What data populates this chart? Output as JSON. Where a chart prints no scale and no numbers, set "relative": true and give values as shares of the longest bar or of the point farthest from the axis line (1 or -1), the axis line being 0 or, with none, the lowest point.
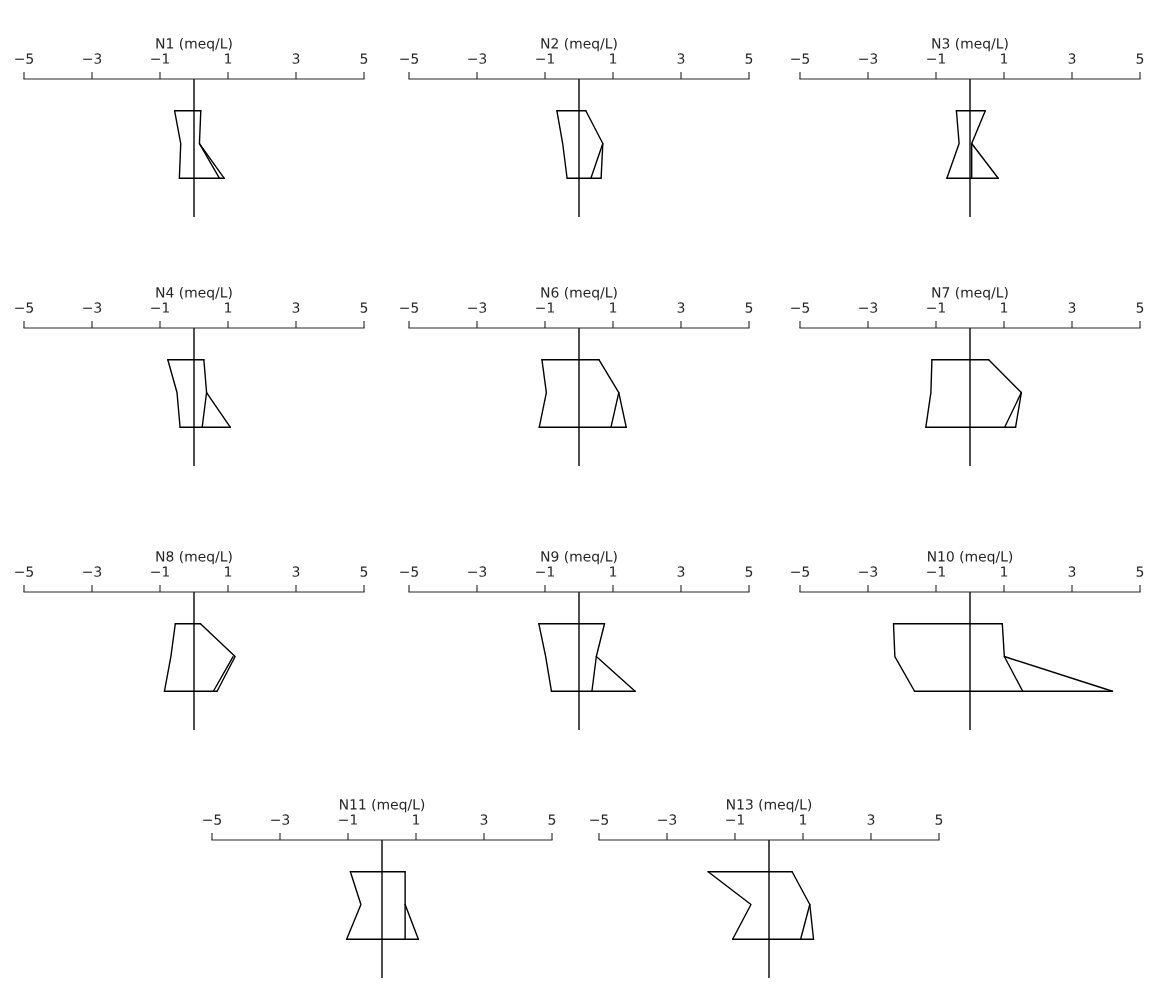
{
  "chart_data": [
    {
      "type": "line",
      "title": "N1 (meq/L)",
      "relative": true,
      "xlim": [
        -5,
        5
      ],
      "xticks": [
        {
          "value": -5,
          "label": "−5"
        },
        {
          "value": -3,
          "label": "−3"
        },
        {
          "value": -1,
          "label": "−1"
        },
        1,
        3,
        5
      ],
      "tick_labels": "x",
      "ref_lines": [
        {
          "axis": "x",
          "value": 0,
          "color": "#000000"
        }
      ],
      "series": [
        {
          "color": "#000000",
          "x": [
            -0.57,
            0.2
          ],
          "values": [
            -0.32,
            -0.32
          ]
        },
        {
          "color": "#000000",
          "x": [
            -0.57,
            -0.39,
            -0.43
          ],
          "values": [
            -0.32,
            -0.65,
            -1
          ]
        },
        {
          "color": "#000000",
          "x": [
            0.2,
            0.16,
            0.89
          ],
          "values": [
            -0.32,
            -0.65,
            -1
          ]
        },
        {
          "color": "#000000",
          "x": [
            0.16,
            0.75
          ],
          "values": [
            -0.65,
            -1
          ]
        },
        {
          "color": "#000000",
          "x": [
            -0.43,
            0.89
          ],
          "values": [
            -1,
            -1
          ]
        }
      ]
    },
    {
      "type": "line",
      "title": "N2 (meq/L)",
      "relative": true,
      "xlim": [
        -5,
        5
      ],
      "xticks": [
        {
          "value": -5,
          "label": "−5"
        },
        {
          "value": -3,
          "label": "−3"
        },
        {
          "value": -1,
          "label": "−1"
        },
        1,
        3,
        5
      ],
      "tick_labels": "x",
      "ref_lines": [
        {
          "axis": "x",
          "value": 0,
          "color": "#000000"
        }
      ],
      "series": [
        {
          "color": "#000000",
          "x": [
            -0.65,
            0.2
          ],
          "values": [
            -0.32,
            -0.32
          ]
        },
        {
          "color": "#000000",
          "x": [
            -0.65,
            -0.48,
            -0.35
          ],
          "values": [
            -0.32,
            -0.65,
            -1
          ]
        },
        {
          "color": "#000000",
          "x": [
            0.2,
            0.7,
            0.65
          ],
          "values": [
            -0.32,
            -0.65,
            -1
          ]
        },
        {
          "color": "#000000",
          "x": [
            0.7,
            0.35
          ],
          "values": [
            -0.65,
            -1
          ]
        },
        {
          "color": "#000000",
          "x": [
            -0.35,
            0.65
          ],
          "values": [
            -1,
            -1
          ]
        }
      ]
    },
    {
      "type": "line",
      "title": "N3 (meq/L)",
      "relative": true,
      "xlim": [
        -5,
        5
      ],
      "xticks": [
        {
          "value": -5,
          "label": "−5"
        },
        {
          "value": -3,
          "label": "−3"
        },
        {
          "value": -1,
          "label": "−1"
        },
        1,
        3,
        5
      ],
      "tick_labels": "x",
      "ref_lines": [
        {
          "axis": "x",
          "value": 0,
          "color": "#000000"
        }
      ],
      "series": [
        {
          "color": "#000000",
          "x": [
            -0.4,
            0.45
          ],
          "values": [
            -0.32,
            -0.32
          ]
        },
        {
          "color": "#000000",
          "x": [
            -0.4,
            -0.32,
            -0.68
          ],
          "values": [
            -0.32,
            -0.65,
            -1
          ]
        },
        {
          "color": "#000000",
          "x": [
            0.45,
            0.05,
            0.83
          ],
          "values": [
            -0.32,
            -0.65,
            -1
          ]
        },
        {
          "color": "#000000",
          "x": [
            0.05,
            0.05
          ],
          "values": [
            -0.65,
            -1
          ]
        },
        {
          "color": "#000000",
          "x": [
            -0.68,
            0.83
          ],
          "values": [
            -1,
            -1
          ]
        }
      ]
    },
    {
      "type": "line",
      "title": "N4 (meq/L)",
      "relative": true,
      "xlim": [
        -5,
        5
      ],
      "xticks": [
        {
          "value": -5,
          "label": "−5"
        },
        {
          "value": -3,
          "label": "−3"
        },
        {
          "value": -1,
          "label": "−1"
        },
        1,
        3,
        5
      ],
      "tick_labels": "x",
      "ref_lines": [
        {
          "axis": "x",
          "value": 0,
          "color": "#000000"
        }
      ],
      "series": [
        {
          "color": "#000000",
          "x": [
            -0.77,
            0.29
          ],
          "values": [
            -0.32,
            -0.32
          ]
        },
        {
          "color": "#000000",
          "x": [
            -0.77,
            -0.5,
            -0.41
          ],
          "values": [
            -0.32,
            -0.65,
            -1
          ]
        },
        {
          "color": "#000000",
          "x": [
            0.29,
            0.37,
            1.07
          ],
          "values": [
            -0.32,
            -0.65,
            -1
          ]
        },
        {
          "color": "#000000",
          "x": [
            0.37,
            0.24
          ],
          "values": [
            -0.65,
            -1
          ]
        },
        {
          "color": "#000000",
          "x": [
            -0.41,
            1.07
          ],
          "values": [
            -1,
            -1
          ]
        }
      ]
    },
    {
      "type": "line",
      "title": "N6 (meq/L)",
      "relative": true,
      "xlim": [
        -5,
        5
      ],
      "xticks": [
        {
          "value": -5,
          "label": "−5"
        },
        {
          "value": -3,
          "label": "−3"
        },
        {
          "value": -1,
          "label": "−1"
        },
        1,
        3,
        5
      ],
      "tick_labels": "x",
      "ref_lines": [
        {
          "axis": "x",
          "value": 0,
          "color": "#000000"
        }
      ],
      "series": [
        {
          "color": "#000000",
          "x": [
            -1.09,
            0.59
          ],
          "values": [
            -0.32,
            -0.32
          ]
        },
        {
          "color": "#000000",
          "x": [
            -1.09,
            -0.96,
            -1.17
          ],
          "values": [
            -0.32,
            -0.65,
            -1
          ]
        },
        {
          "color": "#000000",
          "x": [
            0.59,
            1.17,
            1.39
          ],
          "values": [
            -0.32,
            -0.65,
            -1
          ]
        },
        {
          "color": "#000000",
          "x": [
            1.17,
            0.94
          ],
          "values": [
            -0.65,
            -1
          ]
        },
        {
          "color": "#000000",
          "x": [
            -1.17,
            1.39
          ],
          "values": [
            -1,
            -1
          ]
        }
      ]
    },
    {
      "type": "line",
      "title": "N7 (meq/L)",
      "relative": true,
      "xlim": [
        -5,
        5
      ],
      "xticks": [
        {
          "value": -5,
          "label": "−5"
        },
        {
          "value": -3,
          "label": "−3"
        },
        {
          "value": -1,
          "label": "−1"
        },
        1,
        3,
        5
      ],
      "tick_labels": "x",
      "ref_lines": [
        {
          "axis": "x",
          "value": 0,
          "color": "#000000"
        }
      ],
      "series": [
        {
          "color": "#000000",
          "x": [
            -1.12,
            0.55
          ],
          "values": [
            -0.32,
            -0.32
          ]
        },
        {
          "color": "#000000",
          "x": [
            -1.12,
            -1.15,
            -1.3
          ],
          "values": [
            -0.32,
            -0.65,
            -1
          ]
        },
        {
          "color": "#000000",
          "x": [
            0.55,
            1.51,
            1.34
          ],
          "values": [
            -0.32,
            -0.65,
            -1
          ]
        },
        {
          "color": "#000000",
          "x": [
            1.51,
            1.02
          ],
          "values": [
            -0.65,
            -1
          ]
        },
        {
          "color": "#000000",
          "x": [
            -1.3,
            1.34
          ],
          "values": [
            -1,
            -1
          ]
        }
      ]
    },
    {
      "type": "line",
      "title": "N8 (meq/L)",
      "relative": true,
      "xlim": [
        -5,
        5
      ],
      "xticks": [
        {
          "value": -5,
          "label": "−5"
        },
        {
          "value": -3,
          "label": "−3"
        },
        {
          "value": -1,
          "label": "−1"
        },
        1,
        3,
        5
      ],
      "tick_labels": "x",
      "ref_lines": [
        {
          "axis": "x",
          "value": 0,
          "color": "#000000"
        }
      ],
      "series": [
        {
          "color": "#000000",
          "x": [
            -0.55,
            0.19
          ],
          "values": [
            -0.32,
            -0.32
          ]
        },
        {
          "color": "#000000",
          "x": [
            -0.55,
            -0.68,
            -0.87
          ],
          "values": [
            -0.32,
            -0.65,
            -1
          ]
        },
        {
          "color": "#000000",
          "x": [
            0.19,
            1.21,
            0.68
          ],
          "values": [
            -0.32,
            -0.65,
            -1
          ]
        },
        {
          "color": "#000000",
          "x": [
            1.15,
            0.57
          ],
          "values": [
            -0.65,
            -1
          ]
        },
        {
          "color": "#000000",
          "x": [
            -0.87,
            0.68
          ],
          "values": [
            -1,
            -1
          ]
        }
      ]
    },
    {
      "type": "line",
      "title": "N9 (meq/L)",
      "relative": true,
      "xlim": [
        -5,
        5
      ],
      "xticks": [
        {
          "value": -5,
          "label": "−5"
        },
        {
          "value": -3,
          "label": "−3"
        },
        {
          "value": -1,
          "label": "−1"
        },
        1,
        3,
        5
      ],
      "tick_labels": "x",
      "ref_lines": [
        {
          "axis": "x",
          "value": 0,
          "color": "#000000"
        }
      ],
      "series": [
        {
          "color": "#000000",
          "x": [
            -1.18,
            0.75
          ],
          "values": [
            -0.32,
            -0.32
          ]
        },
        {
          "color": "#000000",
          "x": [
            -1.18,
            -0.98,
            -0.81
          ],
          "values": [
            -0.32,
            -0.65,
            -1
          ]
        },
        {
          "color": "#000000",
          "x": [
            0.75,
            0.51,
            1.65
          ],
          "values": [
            -0.32,
            -0.65,
            -1
          ]
        },
        {
          "color": "#000000",
          "x": [
            0.51,
            0.38
          ],
          "values": [
            -0.65,
            -1
          ]
        },
        {
          "color": "#000000",
          "x": [
            -0.81,
            1.65
          ],
          "values": [
            -1,
            -1
          ]
        }
      ]
    },
    {
      "type": "line",
      "title": "N10 (meq/L)",
      "relative": true,
      "xlim": [
        -5,
        5
      ],
      "xticks": [
        {
          "value": -5,
          "label": "−5"
        },
        {
          "value": -3,
          "label": "−3"
        },
        {
          "value": -1,
          "label": "−1"
        },
        1,
        3,
        5
      ],
      "tick_labels": "x",
      "ref_lines": [
        {
          "axis": "x",
          "value": 0,
          "color": "#000000"
        }
      ],
      "series": [
        {
          "color": "#000000",
          "x": [
            -2.25,
            0.95
          ],
          "values": [
            -0.32,
            -0.32
          ]
        },
        {
          "color": "#000000",
          "x": [
            -2.25,
            -2.21,
            -1.63
          ],
          "values": [
            -0.32,
            -0.65,
            -1
          ]
        },
        {
          "color": "#000000",
          "x": [
            0.95,
            1.01,
            4.19
          ],
          "values": [
            -0.32,
            -0.65,
            -1
          ]
        },
        {
          "color": "#000000",
          "x": [
            1.01,
            1.55
          ],
          "values": [
            -0.65,
            -1
          ]
        },
        {
          "color": "#000000",
          "x": [
            -1.63,
            4.19
          ],
          "values": [
            -1,
            -1
          ]
        }
      ]
    },
    {
      "type": "line",
      "title": "N11 (meq/L)",
      "relative": true,
      "xlim": [
        -5,
        5
      ],
      "xticks": [
        {
          "value": -5,
          "label": "−5"
        },
        {
          "value": -3,
          "label": "−3"
        },
        {
          "value": -1,
          "label": "−1"
        },
        1,
        3,
        5
      ],
      "tick_labels": "x",
      "ref_lines": [
        {
          "axis": "x",
          "value": 0,
          "color": "#000000"
        }
      ],
      "series": [
        {
          "color": "#000000",
          "x": [
            -0.93,
            0.68
          ],
          "values": [
            -0.32,
            -0.32
          ]
        },
        {
          "color": "#000000",
          "x": [
            -0.93,
            -0.62,
            -1.04
          ],
          "values": [
            -0.32,
            -0.65,
            -1
          ]
        },
        {
          "color": "#000000",
          "x": [
            0.68,
            0.68,
            1.07
          ],
          "values": [
            -0.32,
            -0.65,
            -1
          ]
        },
        {
          "color": "#000000",
          "x": [
            0.68,
            0.68
          ],
          "values": [
            -0.65,
            -1
          ]
        },
        {
          "color": "#000000",
          "x": [
            -1.04,
            1.07
          ],
          "values": [
            -1,
            -1
          ]
        }
      ]
    },
    {
      "type": "line",
      "title": "N13 (meq/L)",
      "relative": true,
      "xlim": [
        -5,
        5
      ],
      "xticks": [
        {
          "value": -5,
          "label": "−5"
        },
        {
          "value": -3,
          "label": "−3"
        },
        {
          "value": -1,
          "label": "−1"
        },
        1,
        3,
        5
      ],
      "tick_labels": "x",
      "ref_lines": [
        {
          "axis": "x",
          "value": 0,
          "color": "#000000"
        }
      ],
      "series": [
        {
          "color": "#000000",
          "x": [
            -1.79,
            0.68
          ],
          "values": [
            -0.32,
            -0.32
          ]
        },
        {
          "color": "#000000",
          "x": [
            -1.79,
            -0.53,
            -1.07
          ],
          "values": [
            -0.32,
            -0.65,
            -1
          ]
        },
        {
          "color": "#000000",
          "x": [
            0.68,
            1.2,
            1.31
          ],
          "values": [
            -0.32,
            -0.65,
            -1
          ]
        },
        {
          "color": "#000000",
          "x": [
            1.2,
            0.93
          ],
          "values": [
            -0.65,
            -1
          ]
        },
        {
          "color": "#000000",
          "x": [
            -1.07,
            1.31
          ],
          "values": [
            -1,
            -1
          ]
        }
      ]
    }
  ]
}
